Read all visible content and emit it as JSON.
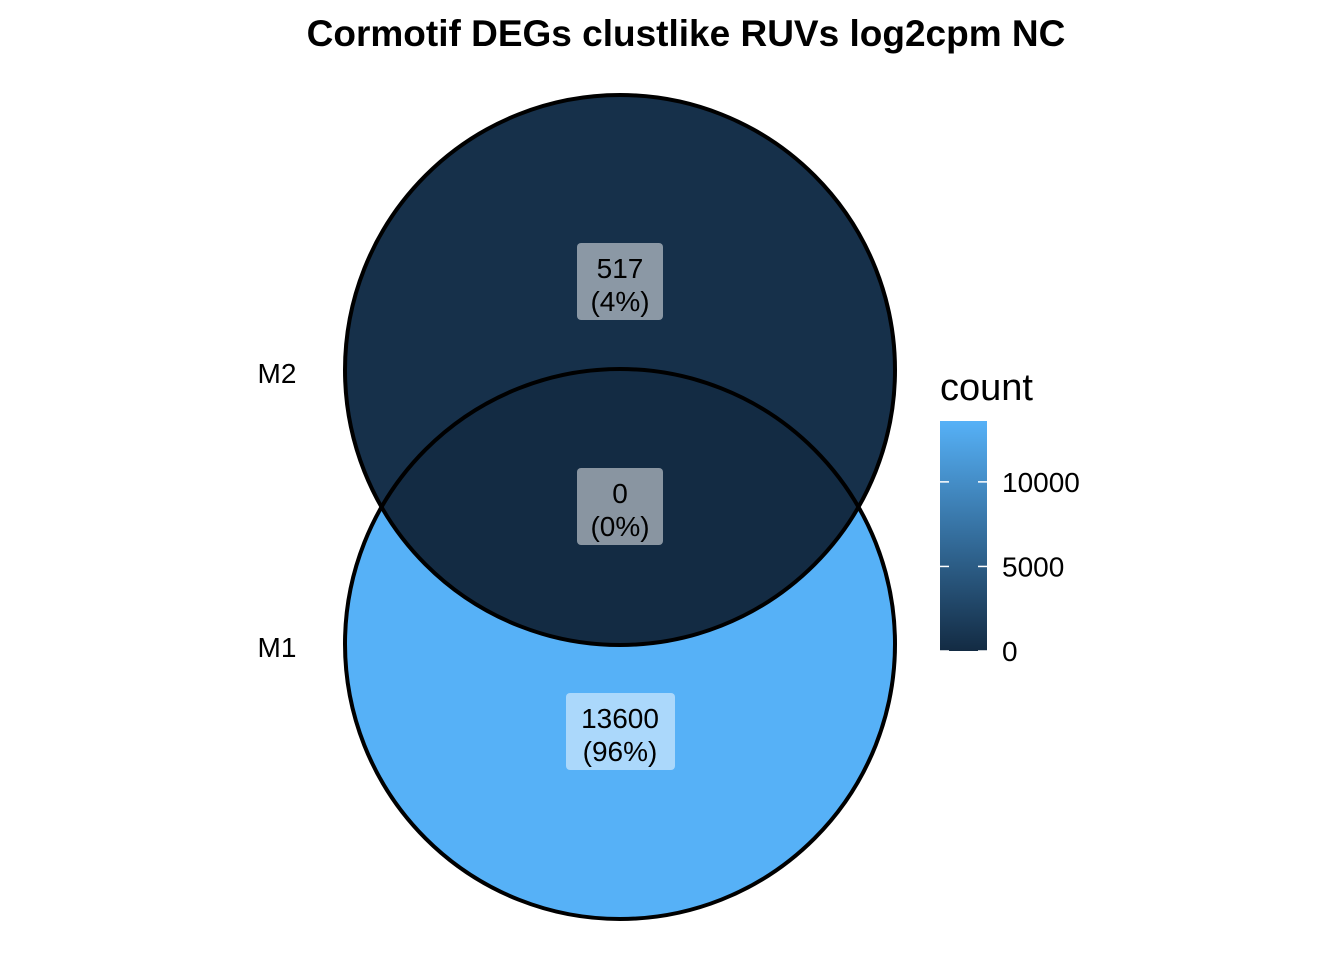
{
  "chart_data": {
    "type": "venn",
    "title": "Cormotif DEGs clustlike RUVs log2cpm NC",
    "sets": [
      {
        "name": "M1",
        "label": "M1"
      },
      {
        "name": "M2",
        "label": "M2"
      }
    ],
    "regions": [
      {
        "sets": [
          "M2"
        ],
        "count": 517,
        "count_label": "517",
        "percent_label": "(4%)"
      },
      {
        "sets": [
          "M1",
          "M2"
        ],
        "count": 0,
        "count_label": "0",
        "percent_label": "(0%)"
      },
      {
        "sets": [
          "M1"
        ],
        "count": 13600,
        "count_label": "13600",
        "percent_label": "(96%)"
      }
    ],
    "legend": {
      "title": "count",
      "position": "right",
      "min": 0,
      "max": 13600,
      "ticks": [
        {
          "value": 0,
          "label": "0"
        },
        {
          "value": 5000,
          "label": "5000"
        },
        {
          "value": 10000,
          "label": "10000"
        }
      ],
      "low_color": "#132b43",
      "high_color": "#56b1f7"
    }
  }
}
